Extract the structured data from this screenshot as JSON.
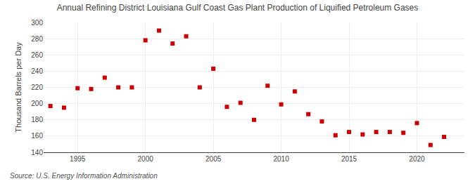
{
  "chart_data": {
    "type": "scatter",
    "title": "Annual Refining District Louisiana Gulf Coast Gas Plant Production of Liquified Petroleum Gases",
    "ylabel": "Thousand Barrels per Day",
    "annotations": [
      "Source: U.S. Energy Information Administration"
    ],
    "x": [
      1993,
      1994,
      1995,
      1996,
      1997,
      1998,
      1999,
      2000,
      2001,
      2002,
      2003,
      2004,
      2005,
      2006,
      2007,
      2008,
      2009,
      2010,
      2011,
      2012,
      2013,
      2014,
      2015,
      2016,
      2017,
      2018,
      2019,
      2020,
      2021,
      2022
    ],
    "values": [
      197,
      195,
      219,
      218,
      232,
      220,
      220,
      278,
      290,
      274,
      283,
      220,
      243,
      196,
      201,
      180,
      222,
      199,
      215,
      187,
      178,
      161,
      165,
      162,
      165,
      165,
      164,
      176,
      149,
      159
    ],
    "color": "#cc0000",
    "marker": "square",
    "xlim": [
      1992.5,
      2023.5
    ],
    "xticks": [
      1995,
      2000,
      2005,
      2010,
      2015,
      2020
    ],
    "ylim": [
      140,
      300
    ],
    "yticks": [
      140,
      160,
      180,
      200,
      220,
      240,
      260,
      280,
      300
    ],
    "grid": true
  }
}
